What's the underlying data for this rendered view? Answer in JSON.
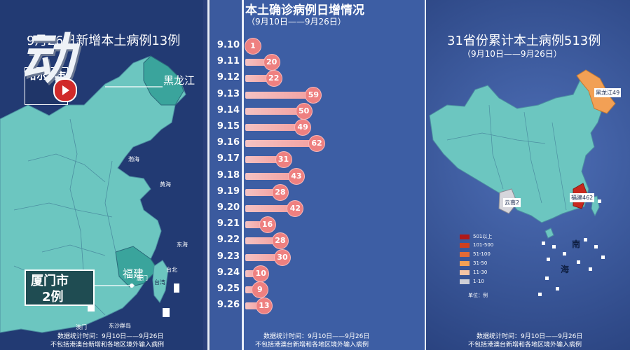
{
  "left": {
    "title": "9月26日新增本土病例13例",
    "badge_char": "动",
    "city_badge_fragment": "哈尔滨市",
    "province_heilongjiang": "黑龙江",
    "province_fujian": "福建",
    "xiamen_title": "厦门市",
    "xiamen_count": "2例",
    "sea_bohai": "渤海",
    "sea_huanghai": "黄海",
    "sea_donghai": "东海",
    "label_taiwan": "台湾",
    "label_taibei": "台北",
    "label_xiamen_small": "厦门",
    "label_aomen": "澳门",
    "label_dongsha": "东沙群岛",
    "footer_line1": "数据统计时间：9月10日——9月26日",
    "footer_line2": "不包括港澳台新增和各地区境外输入病例",
    "colors": {
      "land": "#6cc6c0",
      "highlight": "#3aa49c",
      "sea": "#223a73"
    }
  },
  "middle": {
    "title": "本土确诊病例日增情况",
    "subtitle": "（9月10日——9月26日）",
    "footer_line1": "数据统计时间：9月10日——9月26日",
    "footer_line2": "不包括港澳台新增和各地区境外输入病例"
  },
  "chart_data": {
    "type": "bar",
    "title": "本土确诊病例日增情况",
    "subtitle": "（9月10日——9月26日）",
    "categories": [
      "9.10",
      "9.11",
      "9.12",
      "9.13",
      "9.14",
      "9.15",
      "9.16",
      "9.17",
      "9.18",
      "9.19",
      "9.20",
      "9.21",
      "9.22",
      "9.23",
      "9.24",
      "9.25",
      "9.26"
    ],
    "values": [
      1,
      20,
      22,
      59,
      50,
      49,
      62,
      31,
      43,
      28,
      42,
      16,
      28,
      30,
      10,
      9,
      13
    ],
    "orientation": "horizontal",
    "bar_color": "#f3a3a3",
    "bubble_color": "#ee8080"
  },
  "right": {
    "title": "31省份累计本土病例513例",
    "subtitle": "（9月10日——9月26日）",
    "callout_heilongjiang": "黑龙江49",
    "callout_fujian": "福建462",
    "callout_yunnan": "云南2",
    "label_nan": "南",
    "label_hai": "海",
    "legend": [
      {
        "label": "501以上",
        "color": "#b01818"
      },
      {
        "label": "101-500",
        "color": "#d04020"
      },
      {
        "label": "51-100",
        "color": "#e26a36"
      },
      {
        "label": "31-50",
        "color": "#f2a055"
      },
      {
        "label": "11-30",
        "color": "#f5c4a4"
      },
      {
        "label": "1-10",
        "color": "#cfcfd6"
      }
    ],
    "legend_unit": "单位：例",
    "footer_line1": "数据统计时间：9月10日——9月26日",
    "footer_line2": "不包括港澳台新增和各地区境外输入病例"
  }
}
